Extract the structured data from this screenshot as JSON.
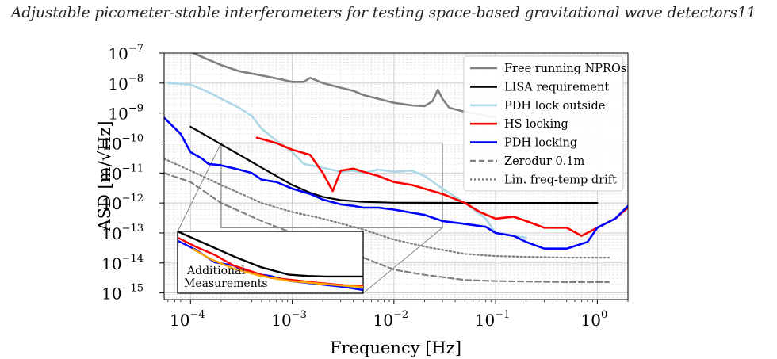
{
  "page": {
    "running_head": "Adjustable picometer-stable interferometers for testing space-based gravitational wave detectors",
    "page_number": "11"
  },
  "chart_data": {
    "type": "line",
    "xscale": "log",
    "yscale": "log",
    "xlabel": "Frequency [Hz]",
    "ylabel": "ASD [m/√Hz]",
    "xlim": [
      5.5e-05,
      2.0
    ],
    "ylim": [
      6e-16,
      1e-07
    ],
    "x_ticks": [
      {
        "value": 0.0001,
        "mantissa": "10",
        "exp": "−4"
      },
      {
        "value": 0.001,
        "mantissa": "10",
        "exp": "−3"
      },
      {
        "value": 0.01,
        "mantissa": "10",
        "exp": "−2"
      },
      {
        "value": 0.1,
        "mantissa": "10",
        "exp": "−1"
      },
      {
        "value": 1,
        "mantissa": "10",
        "exp": "0"
      }
    ],
    "y_ticks": [
      {
        "value": 1e-15,
        "mantissa": "10",
        "exp": "−15"
      },
      {
        "value": 1e-14,
        "mantissa": "10",
        "exp": "−14"
      },
      {
        "value": 1e-13,
        "mantissa": "10",
        "exp": "−13"
      },
      {
        "value": 1e-12,
        "mantissa": "10",
        "exp": "−12"
      },
      {
        "value": 1e-11,
        "mantissa": "10",
        "exp": "−11"
      },
      {
        "value": 1e-10,
        "mantissa": "10",
        "exp": "−10"
      },
      {
        "value": 1e-09,
        "mantissa": "10",
        "exp": "−9"
      },
      {
        "value": 1e-08,
        "mantissa": "10",
        "exp": "−8"
      },
      {
        "value": 1e-07,
        "mantissa": "10",
        "exp": "−7"
      }
    ],
    "grid": true,
    "legend_position": "top-right",
    "series": [
      {
        "name": "Free running NPROs",
        "color": "#808080",
        "dash": "solid",
        "x": [
          5.5e-05,
          8e-05,
          0.0001,
          0.00015,
          0.0002,
          0.0003,
          0.0005,
          0.0008,
          0.001,
          0.0013,
          0.0015,
          0.002,
          0.003,
          0.004,
          0.005,
          0.007,
          0.01,
          0.015,
          0.02,
          0.024,
          0.027,
          0.03,
          0.035,
          0.05,
          0.07,
          0.1
        ],
        "y": [
          2.5e-07,
          1.5e-07,
          1.1e-07,
          6e-08,
          4e-08,
          2.5e-08,
          1.8e-08,
          1.3e-08,
          1.1e-08,
          1.1e-08,
          1.5e-08,
          1e-08,
          7e-09,
          5.5e-09,
          4e-09,
          3e-09,
          2.2e-09,
          1.8e-09,
          1.7e-09,
          2.5e-09,
          6e-09,
          3e-09,
          1.5e-09,
          1.1e-09,
          9e-10,
          7e-10
        ]
      },
      {
        "name": "LISA requirement",
        "color": "#000000",
        "dash": "solid",
        "x": [
          0.0001,
          0.00015,
          0.0002,
          0.0003,
          0.0005,
          0.0007,
          0.001,
          0.0015,
          0.002,
          0.003,
          0.005,
          0.01,
          0.1,
          1.0
        ],
        "y": [
          3.5e-10,
          1.6e-10,
          9e-11,
          4.1e-11,
          1.5e-11,
          7.9e-12,
          4e-12,
          2.2e-12,
          1.6e-12,
          1.25e-12,
          1.09e-12,
          1.02e-12,
          1e-12,
          1e-12
        ]
      },
      {
        "name": "PDH lock outside",
        "color": "#add8e6",
        "dash": "solid",
        "x": [
          6e-05,
          0.0001,
          0.00015,
          0.0002,
          0.0003,
          0.0004,
          0.0005,
          0.0007,
          0.001,
          0.0013,
          0.002,
          0.003,
          0.004,
          0.005,
          0.007,
          0.01,
          0.015,
          0.02,
          0.03,
          0.05,
          0.08,
          0.1,
          0.15,
          0.2
        ],
        "y": [
          1e-08,
          9e-09,
          5e-09,
          3e-09,
          1.5e-09,
          8e-10,
          3e-10,
          1.2e-10,
          5e-11,
          2e-11,
          1.5e-11,
          1.1e-11,
          1.2e-11,
          1e-11,
          1.3e-11,
          1.1e-11,
          1.2e-11,
          8e-12,
          3e-12,
          1e-12,
          3e-13,
          1e-13,
          8e-14,
          7e-14
        ]
      },
      {
        "name": "HS locking",
        "color": "#ff0000",
        "dash": "solid",
        "x": [
          0.00045,
          0.0007,
          0.001,
          0.0015,
          0.002,
          0.0025,
          0.003,
          0.004,
          0.005,
          0.007,
          0.01,
          0.015,
          0.02,
          0.03,
          0.05,
          0.07,
          0.1,
          0.15,
          0.2,
          0.3,
          0.5,
          0.7,
          1.0,
          1.5,
          2.0
        ],
        "y": [
          1.5e-10,
          1e-10,
          6e-11,
          4e-11,
          1e-11,
          2.5e-12,
          1.2e-11,
          1.4e-11,
          1.1e-11,
          8e-12,
          5e-12,
          4e-12,
          3e-12,
          2e-12,
          1e-12,
          5e-13,
          3e-13,
          3.5e-13,
          2.5e-13,
          1.5e-13,
          1.5e-13,
          8e-14,
          1.5e-13,
          3e-13,
          7e-13
        ]
      },
      {
        "name": "PDH locking",
        "color": "#0000ff",
        "dash": "solid",
        "x": [
          5.5e-05,
          8e-05,
          0.0001,
          0.00013,
          0.00015,
          0.0002,
          0.0003,
          0.0004,
          0.0005,
          0.0007,
          0.001,
          0.0015,
          0.002,
          0.003,
          0.004,
          0.005,
          0.007,
          0.01,
          0.02,
          0.03,
          0.05,
          0.08,
          0.1,
          0.15,
          0.2,
          0.3,
          0.5,
          0.8,
          1.0,
          1.5,
          2.0
        ],
        "y": [
          7e-10,
          2e-10,
          5e-11,
          3e-11,
          2e-11,
          1.8e-11,
          1.3e-11,
          1e-11,
          6e-12,
          5e-12,
          3e-12,
          2e-12,
          1.3e-12,
          9e-13,
          8e-13,
          7e-13,
          7e-13,
          6e-13,
          4e-13,
          2.5e-13,
          2e-13,
          1.6e-13,
          1e-13,
          8e-14,
          5e-14,
          3e-14,
          3e-14,
          5e-14,
          1.5e-13,
          3e-13,
          8e-13
        ]
      },
      {
        "name": "Zerodur 0.1m",
        "color": "#808080",
        "dash": "dashed",
        "x": [
          5.5e-05,
          0.0001,
          0.0002,
          0.0005,
          0.001,
          0.002,
          0.005,
          0.01,
          0.02,
          0.05,
          0.1,
          0.2,
          0.5,
          1.0,
          1.3
        ],
        "y": [
          1e-11,
          5e-12,
          1e-12,
          2.5e-13,
          1e-13,
          5e-14,
          1.5e-14,
          6e-15,
          4e-15,
          2.7e-15,
          2.5e-15,
          2.4e-15,
          2.3e-15,
          2.3e-15,
          2.3e-15
        ]
      },
      {
        "name": "Lin. freq-temp drift",
        "color": "#808080",
        "dash": "dotted",
        "x": [
          5.5e-05,
          0.0001,
          0.0002,
          0.0005,
          0.001,
          0.002,
          0.005,
          0.01,
          0.02,
          0.05,
          0.1,
          0.2,
          0.5,
          1.0,
          1.3
        ],
        "y": [
          3e-11,
          1.2e-11,
          4e-12,
          1e-12,
          5e-13,
          3e-13,
          1.3e-13,
          6e-14,
          3.5e-14,
          2e-14,
          1.7e-14,
          1.6e-14,
          1.5e-14,
          1.5e-14,
          1.5e-14
        ]
      }
    ],
    "zoom_box": {
      "x": [
        0.0002,
        0.03
      ],
      "y": [
        1.5e-13,
        1e-10
      ]
    },
    "inset": {
      "label_line1": "Additional",
      "label_line2": "Measurements",
      "series": [
        {
          "color": "#ffa500",
          "u": [
            0.08,
            0.18,
            0.3,
            0.45,
            0.6,
            0.75,
            0.9,
            1.0
          ],
          "v": [
            0.72,
            0.55,
            0.4,
            0.28,
            0.2,
            0.16,
            0.12,
            0.1
          ]
        },
        {
          "color": "#ff0000",
          "u": [
            0.0,
            0.1,
            0.2,
            0.3,
            0.4,
            0.5,
            0.6,
            0.75,
            0.9,
            1.0
          ],
          "v": [
            0.9,
            0.75,
            0.62,
            0.45,
            0.35,
            0.25,
            0.22,
            0.17,
            0.13,
            0.12
          ]
        },
        {
          "color": "#0000ff",
          "u": [
            0.0,
            0.1,
            0.2,
            0.3,
            0.4,
            0.5,
            0.6,
            0.75,
            0.9,
            1.0
          ],
          "v": [
            0.85,
            0.7,
            0.5,
            0.45,
            0.32,
            0.28,
            0.2,
            0.15,
            0.1,
            0.05
          ]
        },
        {
          "color": "#000000",
          "u": [
            0.0,
            0.15,
            0.3,
            0.45,
            0.6,
            0.7,
            0.8,
            1.0
          ],
          "v": [
            1.0,
            0.8,
            0.6,
            0.42,
            0.3,
            0.28,
            0.27,
            0.27
          ]
        }
      ]
    }
  }
}
